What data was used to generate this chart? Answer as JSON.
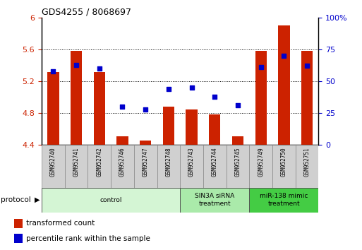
{
  "title": "GDS4255 / 8068697",
  "samples": [
    "GSM952740",
    "GSM952741",
    "GSM952742",
    "GSM952746",
    "GSM952747",
    "GSM952748",
    "GSM952743",
    "GSM952744",
    "GSM952745",
    "GSM952749",
    "GSM952750",
    "GSM952751"
  ],
  "red_values": [
    5.32,
    5.58,
    5.32,
    4.51,
    4.46,
    4.88,
    4.85,
    4.78,
    4.51,
    5.58,
    5.9,
    5.58
  ],
  "blue_values": [
    58,
    63,
    60,
    30,
    28,
    44,
    45,
    38,
    31,
    61,
    70,
    62
  ],
  "ylim_left": [
    4.4,
    6.0
  ],
  "ylim_right": [
    0,
    100
  ],
  "yticks_left": [
    4.4,
    4.8,
    5.2,
    5.6,
    6.0
  ],
  "ytick_labels_left": [
    "4.4",
    "4.8",
    "5.2",
    "5.6",
    "6"
  ],
  "yticks_right": [
    0,
    25,
    50,
    75,
    100
  ],
  "ytick_labels_right": [
    "0",
    "25",
    "50",
    "75",
    "100%"
  ],
  "dotted_gridlines": [
    4.8,
    5.2,
    5.6
  ],
  "protocol_groups": [
    {
      "label": "control",
      "start": 0,
      "end": 5,
      "color": "#d4f5d4"
    },
    {
      "label": "SIN3A siRNA\ntreatment",
      "start": 6,
      "end": 8,
      "color": "#aaeaaa"
    },
    {
      "label": "miR-138 mimic\ntreatment",
      "start": 9,
      "end": 11,
      "color": "#44cc44"
    }
  ],
  "bar_color": "#cc2200",
  "dot_color": "#0000cc",
  "bar_width": 0.5,
  "xlabel_color": "#cc2200",
  "ylabel_right_color": "#0000cc",
  "legend_items": [
    {
      "label": "transformed count",
      "color": "#cc2200"
    },
    {
      "label": "percentile rank within the sample",
      "color": "#0000cc"
    }
  ],
  "n_samples": 12
}
